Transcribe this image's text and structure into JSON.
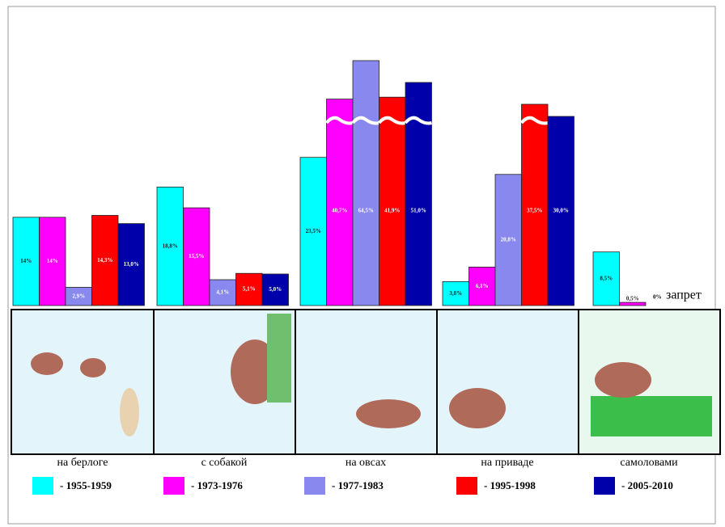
{
  "chart_data": {
    "type": "bar",
    "categories": [
      "на берлоге",
      "с собакой",
      "на овсах",
      "на приваде",
      "самоловами"
    ],
    "series": [
      {
        "name": "- 1955-1959",
        "color": "#00ffff",
        "values": [
          14,
          18.8,
          23.5,
          3.8,
          8.5
        ],
        "value_labels": [
          "14%",
          "18,8%",
          "23,5%",
          "3,8%",
          "8,5%"
        ]
      },
      {
        "name": "- 1973-1976",
        "color": "#ff00ff",
        "values": [
          14,
          15.5,
          40.7,
          6.1,
          0.5
        ],
        "value_labels": [
          "14%",
          "15,5%",
          "40,7%",
          "6,1%",
          "0,5%"
        ]
      },
      {
        "name": "- 1977-1983",
        "color": "#8888ee",
        "values": [
          2.9,
          4.1,
          64.5,
          20.8,
          null
        ],
        "value_labels": [
          "2,9%",
          "4,1%",
          "64,5%",
          "20,8%",
          null
        ]
      },
      {
        "name": "- 1995-1998",
        "color": "#ff0000",
        "values": [
          14.3,
          5.1,
          41.9,
          37.5,
          null
        ],
        "value_labels": [
          "14,3%",
          "5,1%",
          "41,9%",
          "37,5%",
          null
        ]
      },
      {
        "name": "- 2005-2010",
        "color": "#0000aa",
        "values": [
          13.0,
          5.0,
          51.0,
          30.0,
          null
        ],
        "value_labels": [
          "13,0%",
          "5,0%",
          "51,0%",
          "30,0%",
          null
        ]
      }
    ],
    "annotations": [
      "0%",
      "запрет"
    ]
  }
}
